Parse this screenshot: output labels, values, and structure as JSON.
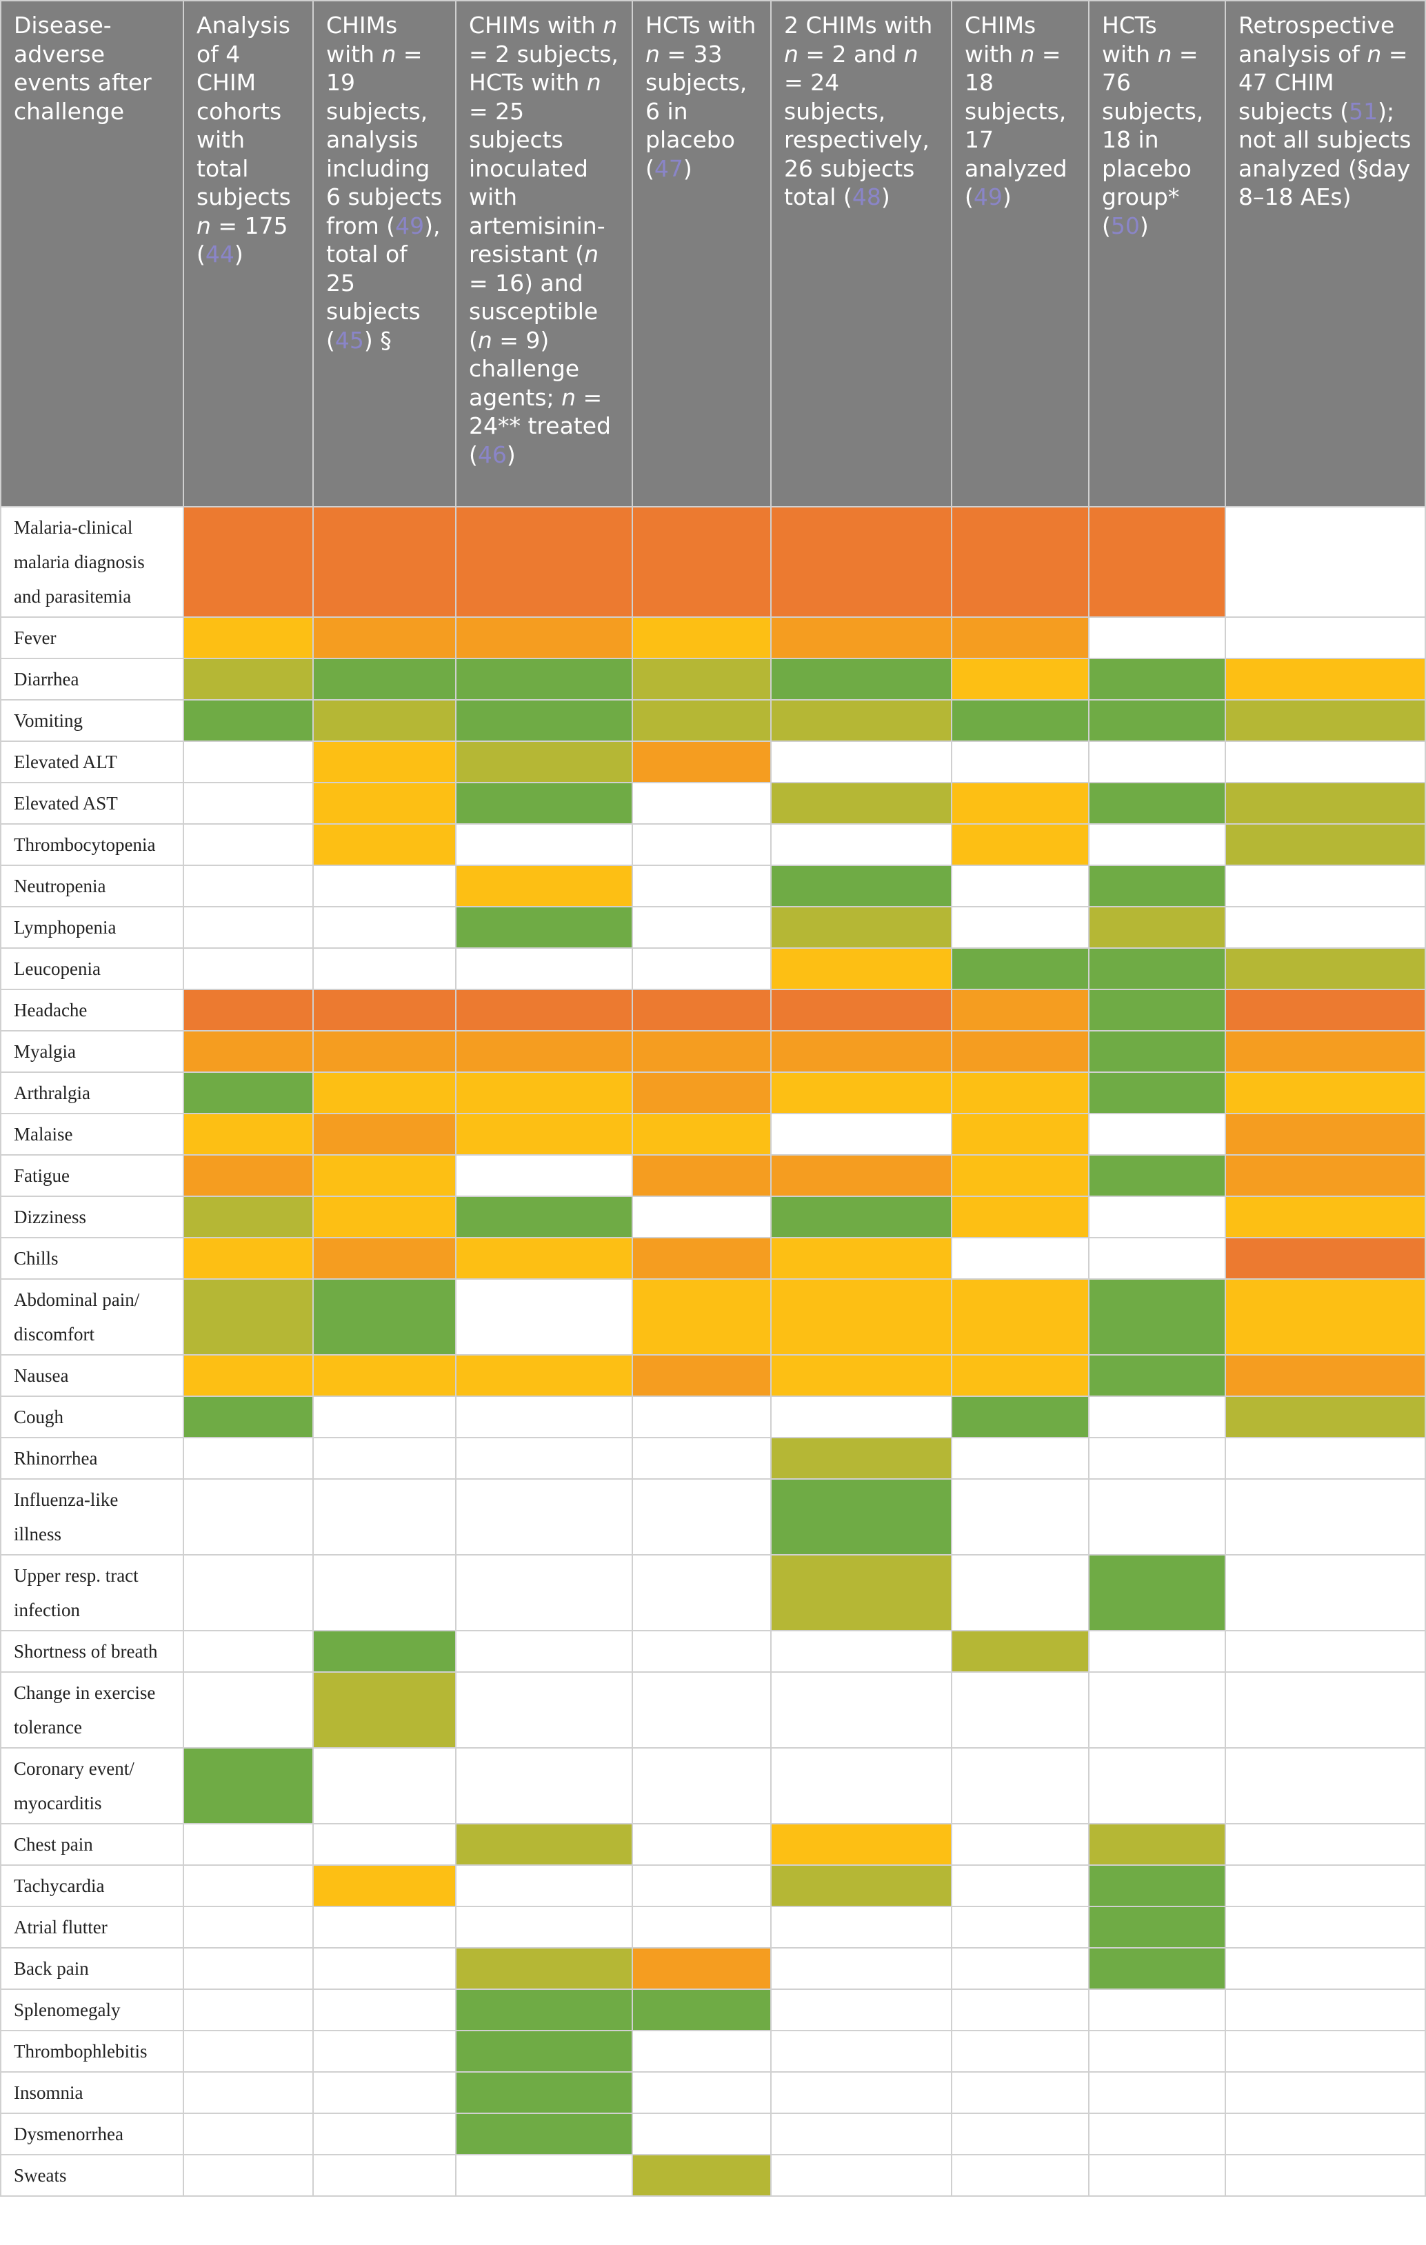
{
  "table": {
    "header": [
      [
        "Disease-adverse events after challenge"
      ],
      [
        "Analysis of 4 CHIM cohorts with total subjects ",
        {
          "italic": "n"
        },
        " = 175 (",
        {
          "ref": "44"
        },
        ")"
      ],
      [
        "CHIMs with ",
        {
          "italic": "n"
        },
        " = 19 subjects, analysis including 6 subjects from (",
        {
          "ref": "49"
        },
        "), total of 25 subjects (",
        {
          "ref": "45"
        },
        ") §"
      ],
      [
        "CHIMs with ",
        {
          "italic": "n"
        },
        " = 2 subjects, HCTs with ",
        {
          "italic": "n"
        },
        " = 25 subjects inoculated with artemisinin-resistant (",
        {
          "italic": "n"
        },
        " = 16) and susceptible (",
        {
          "italic": "n"
        },
        " = 9) challenge agents; ",
        {
          "italic": "n"
        },
        " = 24** treated (",
        {
          "ref": "46"
        },
        ")"
      ],
      [
        "HCTs with ",
        {
          "italic": "n"
        },
        " = 33 subjects, 6 in placebo (",
        {
          "ref": "47"
        },
        ")"
      ],
      [
        "2 CHIMs with ",
        {
          "italic": "n"
        },
        " = 2 and ",
        {
          "italic": "n"
        },
        " = 24 subjects, respectively, 26 subjects total (",
        {
          "ref": "48"
        },
        ")"
      ],
      [
        "CHIMs with ",
        {
          "italic": "n"
        },
        " = 18 subjects, 17 analyzed (",
        {
          "ref": "49"
        },
        ")"
      ],
      [
        "HCTs with ",
        {
          "italic": "n"
        },
        " = 76 subjects, 18 in placebo group* (",
        {
          "ref": "50"
        },
        ")"
      ],
      [
        "Retrospective analysis of ",
        {
          "italic": "n"
        },
        " = 47 CHIM subjects (",
        {
          "ref": "51"
        },
        "); not all subjects analyzed (§day 8–18 AEs)"
      ]
    ],
    "rows": [
      {
        "label": "Malaria-clinical malaria diagnosis and parasitemia",
        "cells": [
          "#ec7a30",
          "#ec7a30",
          "#ec7a30",
          "#ec7a30",
          "#ec7a30",
          "#ec7a30",
          "#ec7a30",
          null
        ]
      },
      {
        "label": "Fever",
        "cells": [
          "#fdbf14",
          "#f59d20",
          "#f59d20",
          "#fdbf14",
          "#f59d20",
          "#f59d20",
          null,
          null
        ]
      },
      {
        "label": "Diarrhea",
        "cells": [
          "#b5b735",
          "#6fab45",
          "#6fab45",
          "#b5b735",
          "#6fab45",
          "#fdbf14",
          "#6fab45",
          "#fdbf14"
        ]
      },
      {
        "label": "Vomiting",
        "cells": [
          "#6fab45",
          "#b5b735",
          "#6fab45",
          "#b5b735",
          "#b5b735",
          "#6fab45",
          "#6fab45",
          "#b5b735"
        ]
      },
      {
        "label": "Elevated ALT",
        "cells": [
          null,
          "#fdbf14",
          "#b5b735",
          "#f59d20",
          null,
          null,
          null,
          null
        ]
      },
      {
        "label": "Elevated AST",
        "cells": [
          null,
          "#fdbf14",
          "#6fab45",
          null,
          "#b5b735",
          "#fdbf14",
          "#6fab45",
          "#b5b735"
        ]
      },
      {
        "label": "Thrombocytopenia",
        "cells": [
          null,
          "#fdbf14",
          null,
          null,
          null,
          "#fdbf14",
          null,
          "#b5b735"
        ]
      },
      {
        "label": "Neutropenia",
        "cells": [
          null,
          null,
          "#fdbf14",
          null,
          "#6fab45",
          null,
          "#6fab45",
          null
        ]
      },
      {
        "label": "Lymphopenia",
        "cells": [
          null,
          null,
          "#6fab45",
          null,
          "#b5b735",
          null,
          "#b5b735",
          null
        ]
      },
      {
        "label": "Leucopenia",
        "cells": [
          null,
          null,
          null,
          null,
          "#fdbf14",
          "#6fab45",
          "#6fab45",
          "#b5b735"
        ]
      },
      {
        "label": "Headache",
        "cells": [
          "#ec7a30",
          "#ec7a30",
          "#ec7a30",
          "#ec7a30",
          "#ec7a30",
          "#f59d20",
          "#6fab45",
          "#ec7a30"
        ]
      },
      {
        "label": "Myalgia",
        "cells": [
          "#f59d20",
          "#f59d20",
          "#f59d20",
          "#f59d20",
          "#f59d20",
          "#f59d20",
          "#6fab45",
          "#f59d20"
        ]
      },
      {
        "label": "Arthralgia",
        "cells": [
          "#6fab45",
          "#fdbf14",
          "#fdbf14",
          "#f59d20",
          "#fdbf14",
          "#fdbf14",
          "#6fab45",
          "#fdbf14"
        ]
      },
      {
        "label": "Malaise",
        "cells": [
          "#fdbf14",
          "#f59d20",
          "#fdbf14",
          "#fdbf14",
          null,
          "#fdbf14",
          null,
          "#f59d20"
        ]
      },
      {
        "label": "Fatigue",
        "cells": [
          "#f59d20",
          "#fdbf14",
          null,
          "#f59d20",
          "#f59d20",
          "#fdbf14",
          "#6fab45",
          "#f59d20"
        ]
      },
      {
        "label": "Dizziness",
        "cells": [
          "#b5b735",
          "#fdbf14",
          "#6fab45",
          null,
          "#6fab45",
          "#fdbf14",
          null,
          "#fdbf14"
        ]
      },
      {
        "label": "Chills",
        "cells": [
          "#fdbf14",
          "#f59d20",
          "#fdbf14",
          "#f59d20",
          "#fdbf14",
          null,
          null,
          "#ec7a30"
        ]
      },
      {
        "label": "Abdominal pain/ discomfort",
        "cells": [
          "#b5b735",
          "#6fab45",
          null,
          "#fdbf14",
          "#fdbf14",
          "#fdbf14",
          "#6fab45",
          "#fdbf14"
        ]
      },
      {
        "label": "Nausea",
        "cells": [
          "#fdbf14",
          "#fdbf14",
          "#fdbf14",
          "#f59d20",
          "#fdbf14",
          "#fdbf14",
          "#6fab45",
          "#f59d20"
        ]
      },
      {
        "label": "Cough",
        "cells": [
          "#6fab45",
          null,
          null,
          null,
          null,
          "#6fab45",
          null,
          "#b5b735"
        ]
      },
      {
        "label": "Rhinorrhea",
        "cells": [
          null,
          null,
          null,
          null,
          "#b5b735",
          null,
          null,
          null
        ]
      },
      {
        "label": "Influenza-like illness",
        "cells": [
          null,
          null,
          null,
          null,
          "#6fab45",
          null,
          null,
          null
        ]
      },
      {
        "label": "Upper resp. tract infection",
        "cells": [
          null,
          null,
          null,
          null,
          "#b5b735",
          null,
          "#6fab45",
          null
        ]
      },
      {
        "label": "Shortness of breath",
        "cells": [
          null,
          "#6fab45",
          null,
          null,
          null,
          "#b5b735",
          null,
          null
        ]
      },
      {
        "label": "Change in exercise tolerance",
        "cells": [
          null,
          "#b5b735",
          null,
          null,
          null,
          null,
          null,
          null
        ]
      },
      {
        "label": "Coronary event/ myocarditis",
        "cells": [
          "#6fab45",
          null,
          null,
          null,
          null,
          null,
          null,
          null
        ]
      },
      {
        "label": "Chest pain",
        "cells": [
          null,
          null,
          "#b5b735",
          null,
          "#fdbf14",
          null,
          "#b5b735",
          null
        ]
      },
      {
        "label": "Tachycardia",
        "cells": [
          null,
          "#fdbf14",
          null,
          null,
          "#b5b735",
          null,
          "#6fab45",
          null
        ]
      },
      {
        "label": "Atrial flutter",
        "cells": [
          null,
          null,
          null,
          null,
          null,
          null,
          "#6fab45",
          null
        ]
      },
      {
        "label": "Back pain",
        "cells": [
          null,
          null,
          "#b5b735",
          "#f59d20",
          null,
          null,
          "#6fab45",
          null
        ]
      },
      {
        "label": "Splenomegaly",
        "cells": [
          null,
          null,
          "#6fab45",
          "#6fab45",
          null,
          null,
          null,
          null
        ]
      },
      {
        "label": "Thrombophlebitis",
        "cells": [
          null,
          null,
          "#6fab45",
          null,
          null,
          null,
          null,
          null
        ]
      },
      {
        "label": "Insomnia",
        "cells": [
          null,
          null,
          "#6fab45",
          null,
          null,
          null,
          null,
          null
        ]
      },
      {
        "label": "Dysmenorrhea",
        "cells": [
          null,
          null,
          "#6fab45",
          null,
          null,
          null,
          null,
          null
        ]
      },
      {
        "label": "Sweats",
        "cells": [
          null,
          null,
          null,
          "#b5b735",
          null,
          null,
          null,
          null
        ]
      }
    ]
  }
}
